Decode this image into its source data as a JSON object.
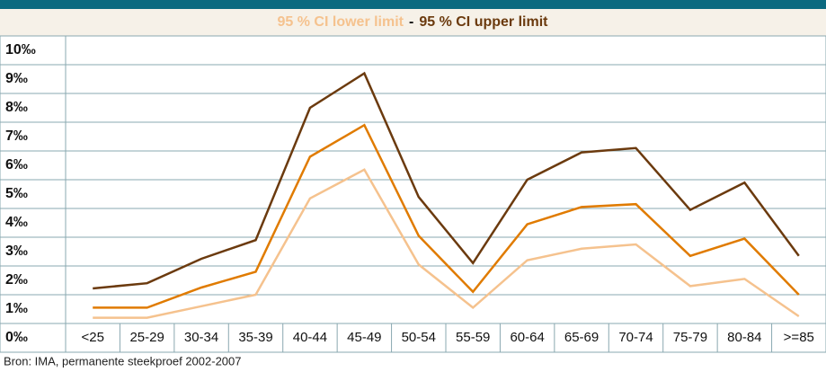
{
  "chart_data": {
    "type": "line",
    "legend_separator": "-",
    "categories": [
      "<25",
      "25-29",
      "30-34",
      "35-39",
      "40-44",
      "45-49",
      "50-54",
      "55-59",
      "60-64",
      "65-69",
      "70-74",
      "75-79",
      "80-84",
      ">=85"
    ],
    "series": [
      {
        "name": "95 % CI lower limit",
        "color": "#f5c28e",
        "values": [
          0.7,
          0.7,
          1.1,
          1.5,
          4.85,
          5.85,
          2.55,
          1.05,
          2.7,
          3.1,
          3.25,
          1.8,
          2.05,
          0.75
        ]
      },
      {
        "color": "#e07b00",
        "values": [
          1.05,
          1.05,
          1.75,
          2.3,
          6.3,
          7.4,
          3.55,
          1.6,
          3.95,
          4.55,
          4.65,
          2.85,
          3.45,
          1.5
        ]
      },
      {
        "name": "95 % CI upper limit",
        "color": "#6b3a0e",
        "values": [
          1.72,
          1.9,
          2.75,
          3.4,
          8.0,
          9.2,
          4.9,
          2.6,
          5.5,
          6.45,
          6.6,
          4.45,
          5.4,
          2.85
        ]
      }
    ],
    "ylim": [
      0,
      10
    ],
    "yticks": [
      {
        "value": 0,
        "label": "0‰"
      },
      {
        "value": 1,
        "label": "1‰"
      },
      {
        "value": 2,
        "label": "2‰"
      },
      {
        "value": 3,
        "label": "3‰"
      },
      {
        "value": 4,
        "label": "4‰"
      },
      {
        "value": 5,
        "label": "5‰"
      },
      {
        "value": 6,
        "label": "6‰"
      },
      {
        "value": 7,
        "label": "7‰"
      },
      {
        "value": 8,
        "label": "8‰"
      },
      {
        "value": 9,
        "label": "9‰"
      },
      {
        "value": 10,
        "label": "10‰"
      }
    ],
    "grid": true,
    "source": "Bron: IMA, permanente steekproef 2002-2007"
  }
}
